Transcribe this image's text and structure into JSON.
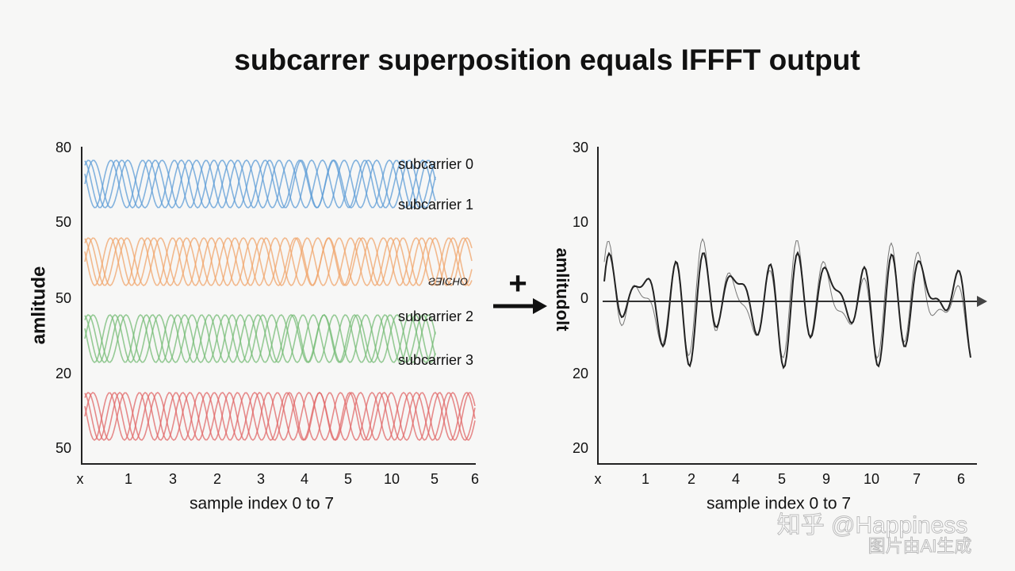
{
  "title": "subcarrer superposition equals IFFFT output",
  "left_panel": {
    "y_axis_label": "amlitude",
    "y_labels": [
      "80",
      "50",
      "50",
      "20",
      "50"
    ],
    "x_labels": [
      "x",
      "1",
      "3",
      "2",
      "3",
      "4",
      "5",
      "10",
      "5",
      "6"
    ],
    "x_axis_label": "sample index 0 to 7",
    "wave_labels": [
      "subcarrier 0",
      "subcarrier 1",
      "ƧƎICHO",
      "subcarrier 2",
      "subcarrier 3"
    ]
  },
  "operator": "+",
  "right_panel": {
    "y_axis_label": "amlitudolt",
    "y_labels": [
      "30",
      "10",
      "0",
      "20",
      "20"
    ],
    "x_labels": [
      "x",
      "1",
      "2",
      "4",
      "5",
      "9",
      "10",
      "7",
      "6"
    ],
    "x_axis_label": "sample index 0 to 7"
  },
  "watermark": {
    "line1": "知乎 @Happiness",
    "line2": "图片由AI生成"
  }
}
